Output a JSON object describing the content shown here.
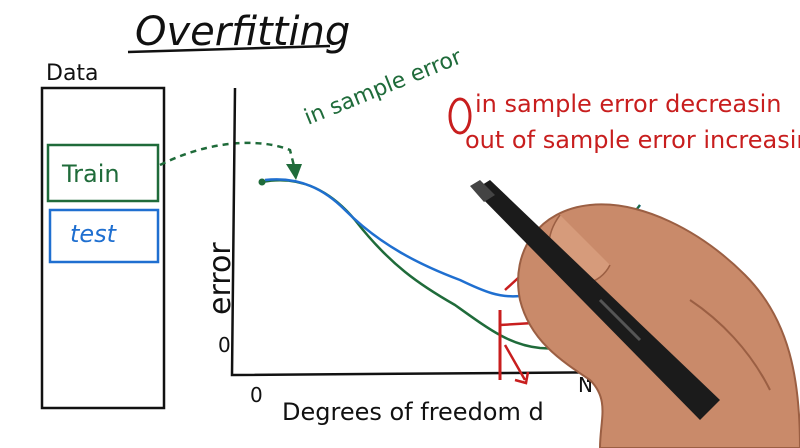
{
  "title": "Overfitting",
  "data_box": {
    "label": "Data",
    "train_label": "Train",
    "test_label": "test"
  },
  "annotations": {
    "in_sample": "in sample error",
    "red_line1": "in sample error decreasin",
    "red_line2": "out of sample error increasing",
    "overfitting_partial": "fitting"
  },
  "axes": {
    "ylabel": "error",
    "xlabel": "Degrees of freedom d",
    "x_tick_0": "0",
    "x_tick_N": "N",
    "y_tick_0": "0"
  },
  "colors": {
    "ink": "#111111",
    "green": "#1f6b3a",
    "blue": "#1f6fd0",
    "red": "#c81e1e"
  }
}
